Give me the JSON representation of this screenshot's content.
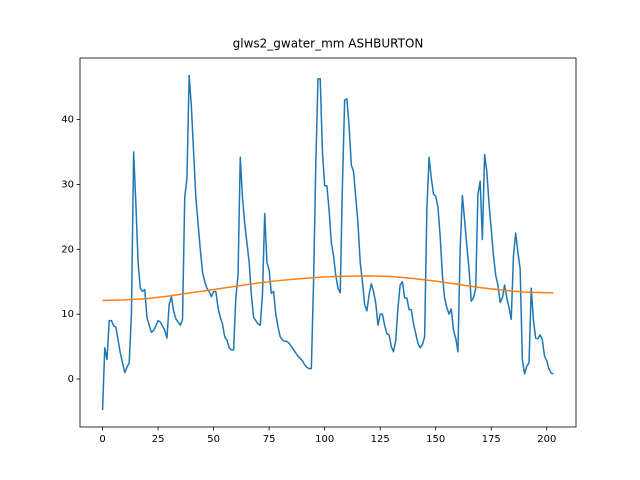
{
  "chart_data": {
    "type": "line",
    "title": "glws2_gwater_mm ASHBURTON",
    "series": [
      {
        "color": "#1f77b4",
        "x": [
          0,
          1,
          2,
          3,
          4,
          5,
          6,
          7,
          8,
          9,
          10,
          11,
          12,
          13,
          14,
          15,
          16,
          17,
          18,
          19,
          20,
          21,
          22,
          23,
          24,
          25,
          26,
          27,
          28,
          29,
          30,
          31,
          32,
          33,
          34,
          35,
          36,
          37,
          38,
          39,
          40,
          41,
          42,
          43,
          44,
          45,
          46,
          47,
          48,
          49,
          50,
          51,
          52,
          53,
          54,
          55,
          56,
          57,
          58,
          59,
          60,
          61,
          62,
          63,
          64,
          65,
          66,
          67,
          68,
          69,
          70,
          71,
          72,
          73,
          74,
          75,
          76,
          77,
          78,
          79,
          80,
          81,
          82,
          83,
          84,
          85,
          86,
          87,
          88,
          89,
          90,
          91,
          92,
          93,
          94,
          95,
          96,
          97,
          98,
          99,
          100,
          101,
          102,
          103,
          104,
          105,
          106,
          107,
          108,
          109,
          110,
          111,
          112,
          113,
          114,
          115,
          116,
          117,
          118,
          119,
          120,
          121,
          122,
          123,
          124,
          125,
          126,
          127,
          128,
          129,
          130,
          131,
          132,
          133,
          134,
          135,
          136,
          137,
          138,
          139,
          140,
          141,
          142,
          143,
          144,
          145,
          146,
          147,
          148,
          149,
          150,
          151,
          152,
          153,
          154,
          155,
          156,
          157,
          158,
          159,
          160,
          161,
          162,
          163,
          164,
          165,
          166,
          167,
          168,
          169,
          170,
          171,
          172,
          173,
          174,
          175,
          176,
          177,
          178,
          179,
          180,
          181,
          182,
          183,
          184,
          185,
          186,
          187,
          188,
          189,
          190,
          191,
          192,
          193,
          194,
          195,
          196,
          197,
          198,
          199,
          200,
          201,
          202,
          203
        ],
        "values": [
          -4.8,
          4.8,
          3,
          9,
          9,
          8.2,
          8,
          6,
          4,
          2.5,
          1,
          1.8,
          2.5,
          10,
          35,
          27,
          18,
          14,
          13.5,
          13.8,
          9.5,
          8.3,
          7.2,
          7.5,
          8.2,
          9,
          8.8,
          8.2,
          7.5,
          6.3,
          11.5,
          12.7,
          10.5,
          9.3,
          8.8,
          8.3,
          9.2,
          28,
          31,
          46.8,
          42,
          35,
          28,
          24,
          20,
          16.5,
          15,
          14,
          13.5,
          12.7,
          13.5,
          13.5,
          11,
          9.5,
          8.5,
          6.5,
          6,
          4.8,
          4.5,
          4.5,
          12.5,
          16,
          34.2,
          28,
          24,
          21,
          18,
          13,
          9.5,
          9,
          8.5,
          8.3,
          13,
          25.5,
          18,
          16.8,
          13.2,
          13.5,
          10,
          8,
          6.5,
          6,
          5.8,
          5.8,
          5.5,
          5,
          4.5,
          4,
          3.5,
          3.2,
          2.8,
          2.2,
          1.8,
          1.6,
          1.6,
          15,
          33,
          46.3,
          46.3,
          35,
          29.8,
          29.8,
          26,
          21,
          19,
          16,
          14,
          13.3,
          30,
          43,
          43.2,
          39,
          33,
          32,
          28,
          24,
          18,
          15,
          11.5,
          10.5,
          13,
          14.7,
          13.5,
          11.7,
          8.3,
          10,
          10,
          8.3,
          7,
          6.8,
          5,
          4.2,
          6,
          11,
          14.5,
          15,
          12.5,
          12.5,
          10.7,
          10.7,
          8.5,
          7,
          5.5,
          4.8,
          5.3,
          6.5,
          26,
          34.2,
          31,
          28.5,
          28.2,
          26.5,
          22,
          16,
          12.5,
          11,
          10,
          10.8,
          7.5,
          6.3,
          4.2,
          20,
          28.3,
          24.5,
          20.5,
          17,
          12,
          12.5,
          14,
          28.5,
          30.5,
          21.5,
          34.6,
          32,
          27,
          23,
          19,
          16,
          14.5,
          11.8,
          12.5,
          14.5,
          12.5,
          11,
          9.2,
          19,
          22.5,
          19.5,
          17,
          3,
          0.8,
          2,
          2.5,
          14,
          9,
          6.3,
          6.2,
          6.8,
          6,
          3.5,
          2.8,
          1.5,
          0.9,
          0.8
        ]
      },
      {
        "color": "#ff7f0e",
        "x": [
          0,
          10,
          20,
          30,
          40,
          50,
          60,
          70,
          80,
          90,
          100,
          110,
          120,
          130,
          140,
          150,
          160,
          170,
          180,
          190,
          200,
          203
        ],
        "values": [
          12.1,
          12.2,
          12.4,
          12.8,
          13.3,
          13.8,
          14.3,
          14.8,
          15.2,
          15.5,
          15.75,
          15.85,
          15.9,
          15.8,
          15.5,
          15.1,
          14.6,
          14.1,
          13.7,
          13.4,
          13.3,
          13.3
        ]
      }
    ],
    "xlim": [
      -10.15,
      213.15
    ],
    "ylim": [
      -7.4,
      49.5
    ],
    "xticks": [
      0,
      25,
      50,
      75,
      100,
      125,
      150,
      175,
      200
    ],
    "yticks": [
      0,
      10,
      20,
      30,
      40
    ]
  }
}
